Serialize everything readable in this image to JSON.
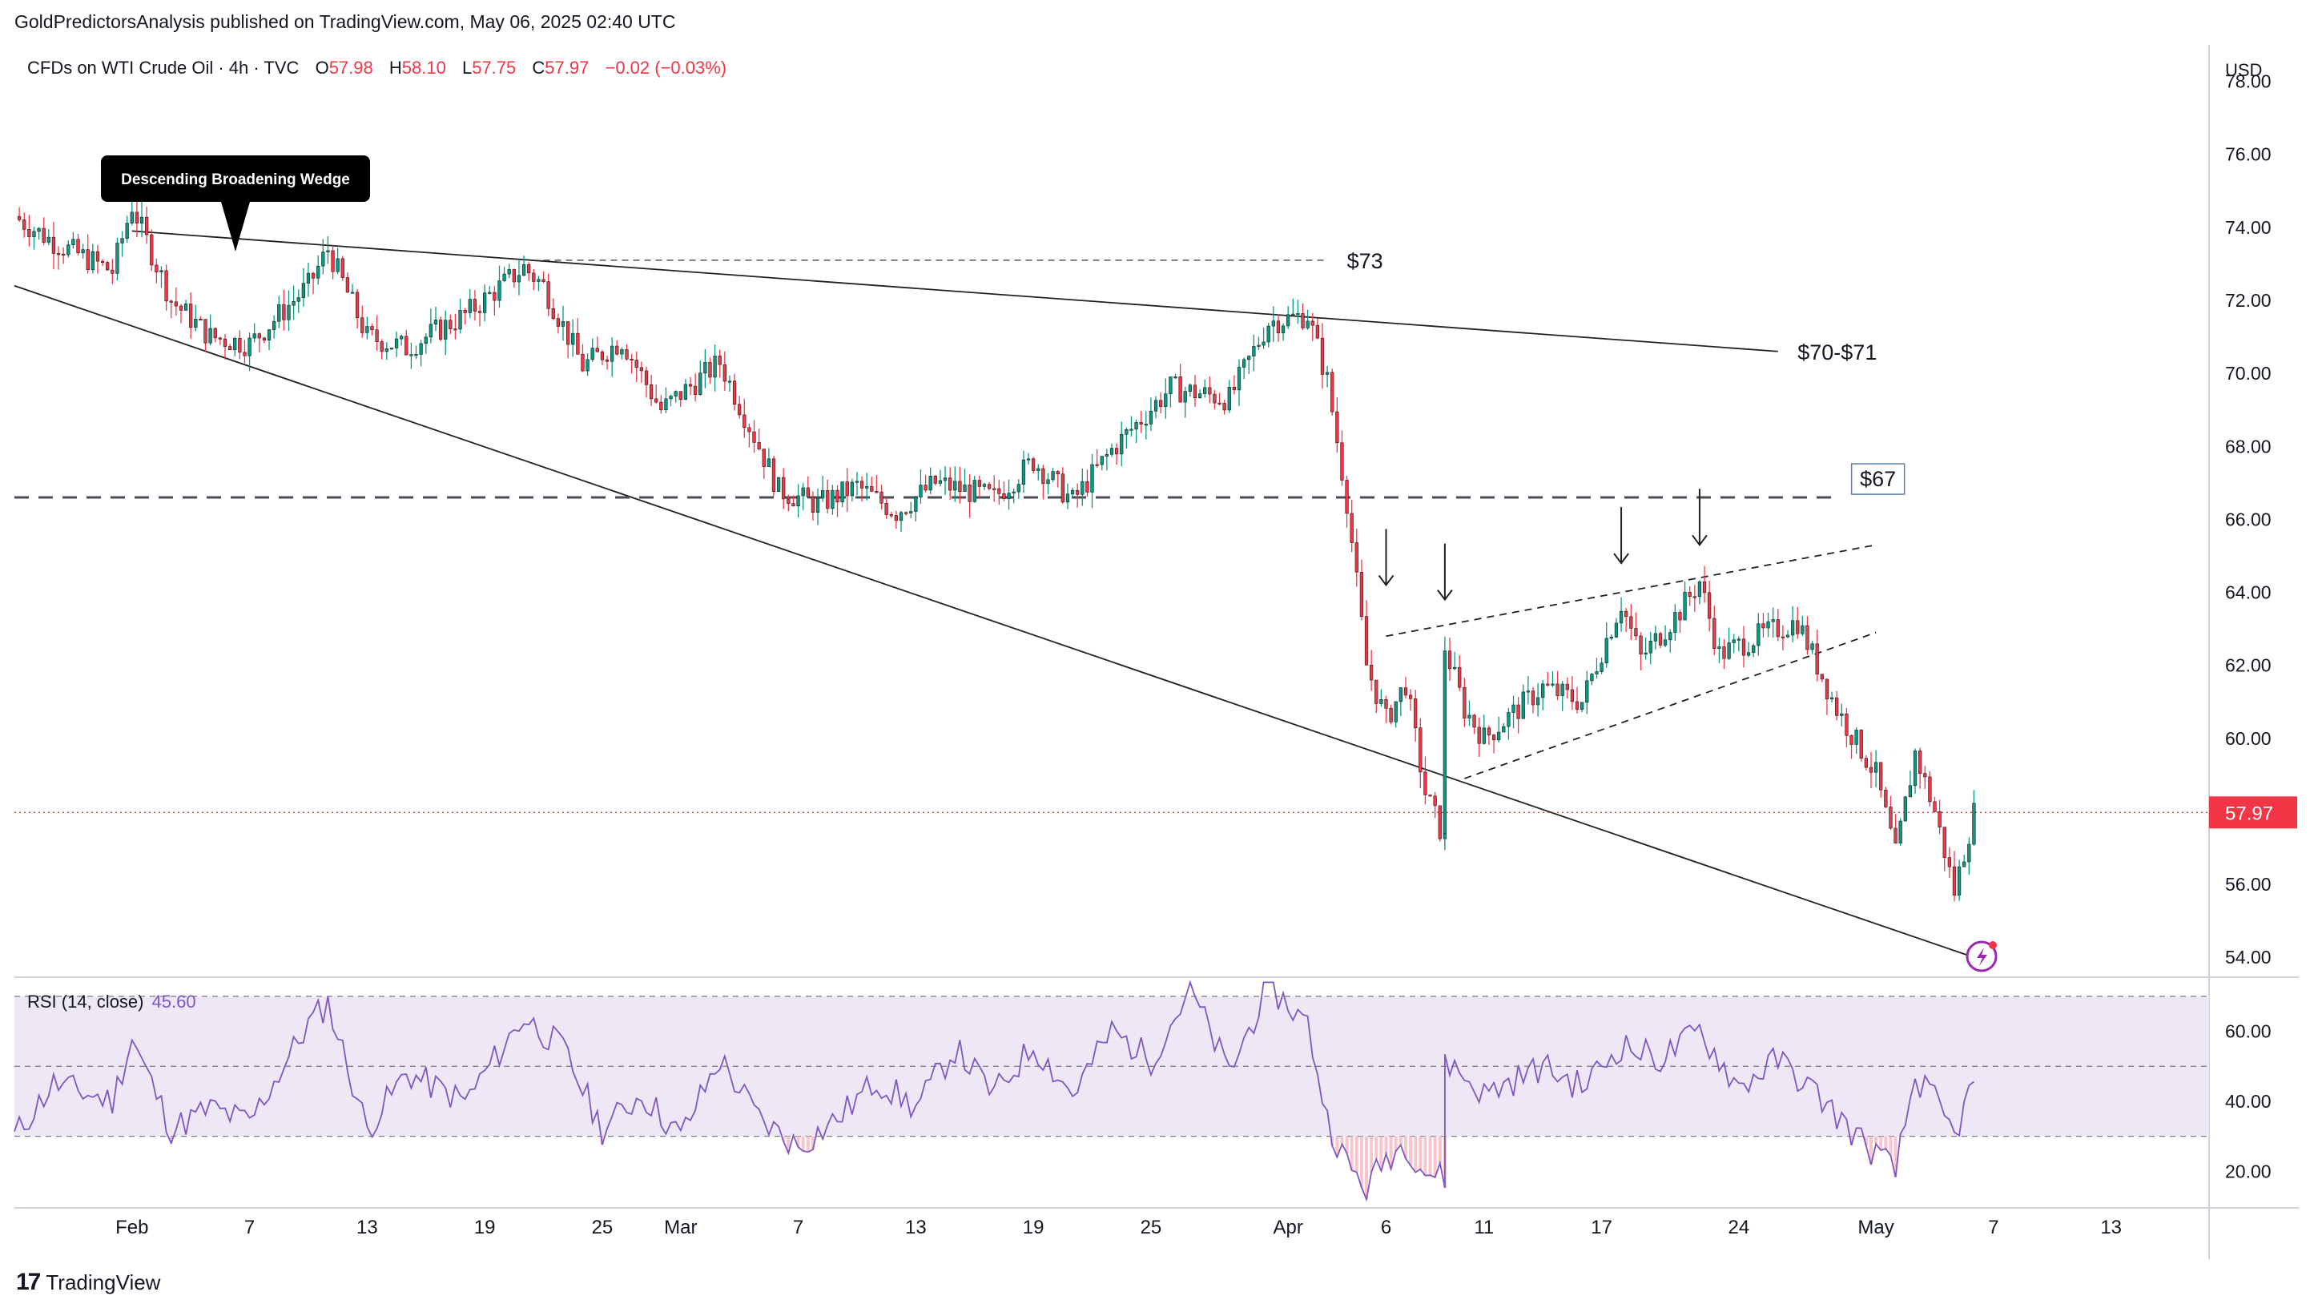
{
  "publish_line": "GoldPredictorsAnalysis published on TradingView.com, May 06, 2025 02:40 UTC",
  "symbol_line": {
    "name": "CFDs on WTI Crude Oil · 4h · TVC",
    "o_label": "O",
    "o_value": "57.98",
    "h_label": "H",
    "h_value": "58.10",
    "l_label": "L",
    "l_value": "57.75",
    "c_label": "C",
    "c_value": "57.97",
    "change": "−0.02 (−0.03%)"
  },
  "currency": "USD",
  "brand": "TradingView",
  "colors": {
    "up": "#089981",
    "down": "#f23645",
    "rsi": "#7e57c2",
    "rsi_band": "#ede7f6",
    "current": "#f23645"
  },
  "chart_data": {
    "type": "candlestick",
    "title": "CFDs on WTI Crude Oil · 4h · TVC",
    "interval": "4h",
    "ylim": [
      53.5,
      79.0
    ],
    "y_ticks": [
      "78.00",
      "76.00",
      "74.00",
      "72.00",
      "70.00",
      "68.00",
      "66.00",
      "64.00",
      "62.00",
      "60.00",
      "58.00",
      "56.00",
      "54.00"
    ],
    "x_ticks": [
      {
        "label": "Feb",
        "date": "2025-02-01"
      },
      {
        "label": "7",
        "date": "2025-02-07"
      },
      {
        "label": "13",
        "date": "2025-02-13"
      },
      {
        "label": "19",
        "date": "2025-02-19"
      },
      {
        "label": "25",
        "date": "2025-02-25"
      },
      {
        "label": "Mar",
        "date": "2025-03-01"
      },
      {
        "label": "7",
        "date": "2025-03-07"
      },
      {
        "label": "13",
        "date": "2025-03-13"
      },
      {
        "label": "19",
        "date": "2025-03-19"
      },
      {
        "label": "25",
        "date": "2025-03-25"
      },
      {
        "label": "Apr",
        "date": "2025-04-01"
      },
      {
        "label": "6",
        "date": "2025-04-06"
      },
      {
        "label": "11",
        "date": "2025-04-11"
      },
      {
        "label": "17",
        "date": "2025-04-17"
      },
      {
        "label": "24",
        "date": "2025-04-24"
      },
      {
        "label": "May",
        "date": "2025-05-01"
      },
      {
        "label": "7",
        "date": "2025-05-07"
      },
      {
        "label": "13",
        "date": "2025-05-13"
      }
    ],
    "x_range": [
      "2025-01-26",
      "2025-05-18"
    ],
    "price_path": [
      {
        "date": "2025-01-26",
        "close": 74.3
      },
      {
        "date": "2025-01-28",
        "close": 73.6
      },
      {
        "date": "2025-01-31",
        "close": 72.8
      },
      {
        "date": "2025-02-01",
        "close": 74.6
      },
      {
        "date": "2025-02-03",
        "close": 72.0
      },
      {
        "date": "2025-02-05",
        "close": 71.0
      },
      {
        "date": "2025-02-07",
        "close": 70.8
      },
      {
        "date": "2025-02-10",
        "close": 72.4
      },
      {
        "date": "2025-02-11",
        "close": 73.4
      },
      {
        "date": "2025-02-13",
        "close": 71.0
      },
      {
        "date": "2025-02-15",
        "close": 70.7
      },
      {
        "date": "2025-02-18",
        "close": 71.6
      },
      {
        "date": "2025-02-21",
        "close": 72.9
      },
      {
        "date": "2025-02-22",
        "close": 72.4
      },
      {
        "date": "2025-02-24",
        "close": 70.2
      },
      {
        "date": "2025-02-26",
        "close": 70.9
      },
      {
        "date": "2025-02-28",
        "close": 69.0
      },
      {
        "date": "2025-03-03",
        "close": 70.3
      },
      {
        "date": "2025-03-05",
        "close": 68.0
      },
      {
        "date": "2025-03-06",
        "close": 66.8
      },
      {
        "date": "2025-03-08",
        "close": 66.4
      },
      {
        "date": "2025-03-10",
        "close": 66.9
      },
      {
        "date": "2025-03-12",
        "close": 66.2
      },
      {
        "date": "2025-03-14",
        "close": 67.0
      },
      {
        "date": "2025-03-17",
        "close": 66.6
      },
      {
        "date": "2025-03-19",
        "close": 67.6
      },
      {
        "date": "2025-03-21",
        "close": 66.5
      },
      {
        "date": "2025-03-23",
        "close": 67.9
      },
      {
        "date": "2025-03-26",
        "close": 69.6
      },
      {
        "date": "2025-03-29",
        "close": 69.3
      },
      {
        "date": "2025-03-31",
        "close": 71.4
      },
      {
        "date": "2025-04-02",
        "close": 71.6
      },
      {
        "date": "2025-04-03",
        "close": 69.8
      },
      {
        "date": "2025-04-04",
        "close": 66.5
      },
      {
        "date": "2025-04-05",
        "close": 62.0
      },
      {
        "date": "2025-04-06",
        "close": 60.5
      },
      {
        "date": "2025-04-07",
        "close": 61.5
      },
      {
        "date": "2025-04-08",
        "close": 58.5
      },
      {
        "date": "2025-04-09",
        "close": 57.2
      },
      {
        "date": "2025-04-09",
        "close": 62.5
      },
      {
        "date": "2025-04-10",
        "close": 60.8
      },
      {
        "date": "2025-04-11",
        "close": 60.0
      },
      {
        "date": "2025-04-14",
        "close": 61.4
      },
      {
        "date": "2025-04-16",
        "close": 61.0
      },
      {
        "date": "2025-04-17",
        "close": 62.4
      },
      {
        "date": "2025-04-18",
        "close": 63.7
      },
      {
        "date": "2025-04-19",
        "close": 62.2
      },
      {
        "date": "2025-04-21",
        "close": 63.5
      },
      {
        "date": "2025-04-22",
        "close": 64.3
      },
      {
        "date": "2025-04-23",
        "close": 62.3
      },
      {
        "date": "2025-04-25",
        "close": 62.8
      },
      {
        "date": "2025-04-27",
        "close": 63.2
      },
      {
        "date": "2025-04-28",
        "close": 62.0
      },
      {
        "date": "2025-04-29",
        "close": 60.8
      },
      {
        "date": "2025-05-01",
        "close": 59.0
      },
      {
        "date": "2025-05-02",
        "close": 56.8
      },
      {
        "date": "2025-05-03",
        "close": 59.6
      },
      {
        "date": "2025-05-04",
        "close": 58.0
      },
      {
        "date": "2025-05-05",
        "close": 55.8
      },
      {
        "date": "2025-05-06",
        "close": 57.97
      }
    ],
    "current_price": "57.97",
    "lines": [
      {
        "kind": "trend",
        "from": {
          "date": "2025-01-26",
          "price": 72.4
        },
        "to": {
          "date": "2025-05-06",
          "price": 54.0
        }
      },
      {
        "kind": "trend",
        "from": {
          "date": "2025-02-01",
          "price": 73.9
        },
        "to": {
          "date": "2025-04-26",
          "price": 70.6
        }
      },
      {
        "kind": "horizontal_dashed",
        "price": 66.6,
        "from": "2025-01-26",
        "to": "2025-04-29"
      },
      {
        "kind": "horizontal_dashed",
        "price": 73.1,
        "from": "2025-02-22",
        "to": "2025-04-03"
      },
      {
        "kind": "channel_upper",
        "from": {
          "date": "2025-04-06",
          "price": 62.8
        },
        "to": {
          "date": "2025-05-01",
          "price": 65.3
        }
      },
      {
        "kind": "channel_lower",
        "from": {
          "date": "2025-04-10",
          "price": 58.9
        },
        "to": {
          "date": "2025-05-01",
          "price": 62.9
        }
      }
    ],
    "annotations": {
      "wedge_label": "Descending Broadening Wedge",
      "label_73": "$73",
      "label_70_71": "$70-$71",
      "label_67": "$67"
    },
    "arrows": [
      {
        "date": "2025-04-06",
        "price": 64.2
      },
      {
        "date": "2025-04-09",
        "price": 63.8
      },
      {
        "date": "2025-04-18",
        "price": 64.8
      },
      {
        "date": "2025-04-22",
        "price": 65.3
      }
    ],
    "rsi": {
      "label": "RSI (14, close)",
      "value": "45.60",
      "ylim": [
        10,
        75
      ],
      "ticks": [
        "60.00",
        "40.00",
        "20.00"
      ],
      "levels": [
        70,
        50,
        30
      ],
      "path": [
        {
          "date": "2025-01-26",
          "v": 30
        },
        {
          "date": "2025-01-28",
          "v": 45
        },
        {
          "date": "2025-01-31",
          "v": 40
        },
        {
          "date": "2025-02-01",
          "v": 58
        },
        {
          "date": "2025-02-03",
          "v": 32
        },
        {
          "date": "2025-02-05",
          "v": 38
        },
        {
          "date": "2025-02-07",
          "v": 34
        },
        {
          "date": "2025-02-10",
          "v": 62
        },
        {
          "date": "2025-02-11",
          "v": 68
        },
        {
          "date": "2025-02-13",
          "v": 32
        },
        {
          "date": "2025-02-15",
          "v": 48
        },
        {
          "date": "2025-02-18",
          "v": 40
        },
        {
          "date": "2025-02-21",
          "v": 64
        },
        {
          "date": "2025-02-23",
          "v": 55
        },
        {
          "date": "2025-02-25",
          "v": 32
        },
        {
          "date": "2025-02-27",
          "v": 42
        },
        {
          "date": "2025-03-01",
          "v": 30
        },
        {
          "date": "2025-03-03",
          "v": 52
        },
        {
          "date": "2025-03-05",
          "v": 35
        },
        {
          "date": "2025-03-07",
          "v": 27
        },
        {
          "date": "2025-03-09",
          "v": 35
        },
        {
          "date": "2025-03-11",
          "v": 46
        },
        {
          "date": "2025-03-13",
          "v": 38
        },
        {
          "date": "2025-03-15",
          "v": 55
        },
        {
          "date": "2025-03-17",
          "v": 42
        },
        {
          "date": "2025-03-19",
          "v": 56
        },
        {
          "date": "2025-03-21",
          "v": 42
        },
        {
          "date": "2025-03-23",
          "v": 60
        },
        {
          "date": "2025-03-25",
          "v": 52
        },
        {
          "date": "2025-03-27",
          "v": 72
        },
        {
          "date": "2025-03-29",
          "v": 48
        },
        {
          "date": "2025-03-31",
          "v": 73
        },
        {
          "date": "2025-04-02",
          "v": 62
        },
        {
          "date": "2025-04-03",
          "v": 35
        },
        {
          "date": "2025-04-04",
          "v": 22
        },
        {
          "date": "2025-04-05",
          "v": 15
        },
        {
          "date": "2025-04-06",
          "v": 24
        },
        {
          "date": "2025-04-07",
          "v": 28
        },
        {
          "date": "2025-04-08",
          "v": 20
        },
        {
          "date": "2025-04-09",
          "v": 18
        },
        {
          "date": "2025-04-09",
          "v": 52
        },
        {
          "date": "2025-04-11",
          "v": 42
        },
        {
          "date": "2025-04-14",
          "v": 50
        },
        {
          "date": "2025-04-16",
          "v": 44
        },
        {
          "date": "2025-04-18",
          "v": 56
        },
        {
          "date": "2025-04-20",
          "v": 52
        },
        {
          "date": "2025-04-22",
          "v": 60
        },
        {
          "date": "2025-04-24",
          "v": 44
        },
        {
          "date": "2025-04-26",
          "v": 52
        },
        {
          "date": "2025-04-28",
          "v": 42
        },
        {
          "date": "2025-04-30",
          "v": 30
        },
        {
          "date": "2025-05-02",
          "v": 20
        },
        {
          "date": "2025-05-03",
          "v": 47
        },
        {
          "date": "2025-05-04",
          "v": 40
        },
        {
          "date": "2025-05-05",
          "v": 30
        },
        {
          "date": "2025-05-06",
          "v": 45.6
        }
      ]
    }
  }
}
